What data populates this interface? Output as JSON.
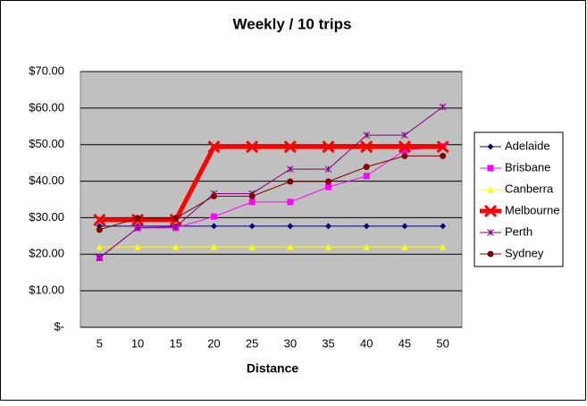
{
  "chart_data": {
    "type": "line",
    "title": "Weekly / 10 trips",
    "x_label": "Distance",
    "categories": [
      "5",
      "10",
      "15",
      "20",
      "25",
      "30",
      "35",
      "40",
      "45",
      "50"
    ],
    "ylim": [
      0,
      70
    ],
    "yticks": [
      {
        "value": 0,
        "label": "$-"
      },
      {
        "value": 10,
        "label": "$10.00"
      },
      {
        "value": 20,
        "label": "$20.00"
      },
      {
        "value": 30,
        "label": "$30.00"
      },
      {
        "value": 40,
        "label": "$40.00"
      },
      {
        "value": 50,
        "label": "$50.00"
      },
      {
        "value": 60,
        "label": "$60.00"
      },
      {
        "value": 70,
        "label": "$70.00"
      }
    ],
    "grid": true,
    "legend": "right",
    "series": [
      {
        "name": "Adelaide",
        "color": "#000080",
        "marker": "diamond",
        "width": 1,
        "values": [
          27.7,
          27.7,
          27.7,
          27.7,
          27.7,
          27.7,
          27.7,
          27.7,
          27.7,
          27.7
        ]
      },
      {
        "name": "Brisbane",
        "color": "#FF00FF",
        "marker": "square",
        "width": 1,
        "values": [
          19,
          27.2,
          27.2,
          30.3,
          34.3,
          34.3,
          38.4,
          41.4,
          48.5,
          49.5
        ]
      },
      {
        "name": "Canberra",
        "color": "#FFFF00",
        "marker": "triangle",
        "width": 1,
        "values": [
          22,
          22,
          22,
          22,
          22,
          22,
          22,
          22,
          22,
          22
        ]
      },
      {
        "name": "Melbourne",
        "color": "#FF0000",
        "marker": "x",
        "width": 5,
        "values": [
          29.4,
          29.4,
          29.4,
          49.4,
          49.4,
          49.4,
          49.4,
          49.4,
          49.4,
          49.4
        ]
      },
      {
        "name": "Perth",
        "color": "#800080",
        "marker": "star",
        "width": 1,
        "values": [
          19,
          27.2,
          27.5,
          36.6,
          36.6,
          43.3,
          43.3,
          52.6,
          52.6,
          60.3
        ]
      },
      {
        "name": "Sydney",
        "color": "#800000",
        "marker": "circle",
        "width": 1,
        "values": [
          26.7,
          29.9,
          29.9,
          35.9,
          35.9,
          39.9,
          39.9,
          43.9,
          46.9,
          46.9
        ]
      }
    ]
  }
}
